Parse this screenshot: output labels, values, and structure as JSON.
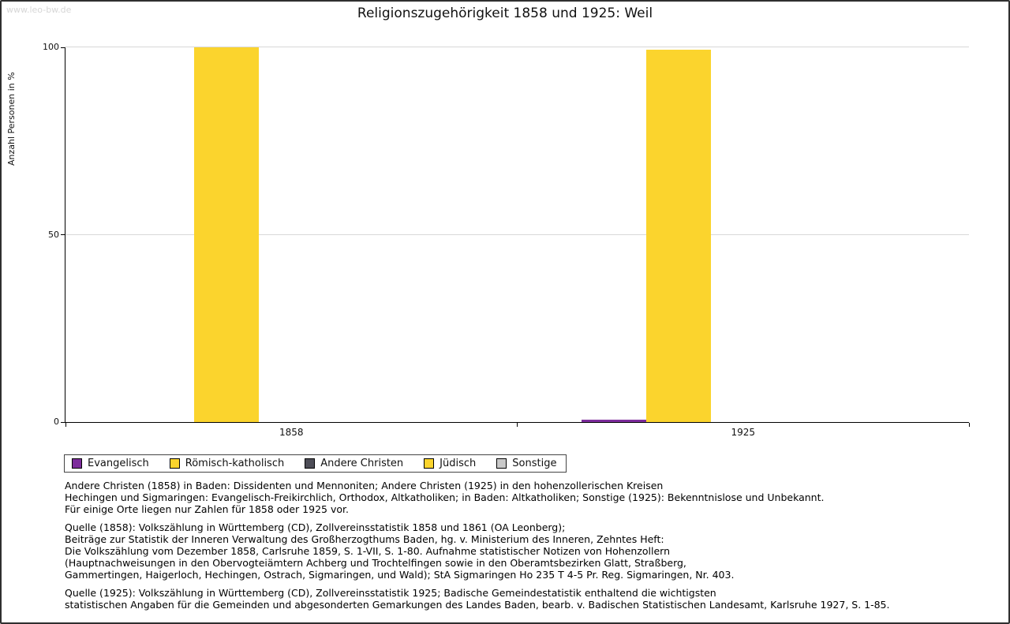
{
  "watermark": "www.leo-bw.de",
  "chart_data": {
    "type": "bar",
    "title": "Religionszugehörigkeit 1858 und 1925: Weil",
    "ylabel": "Anzahl Personen in %",
    "ylim": [
      0,
      100
    ],
    "yticks": [
      0,
      50,
      100
    ],
    "grid": true,
    "legend_position": "bottom-left",
    "categories": [
      "1858",
      "1925"
    ],
    "series": [
      {
        "name": "Evangelisch",
        "color": "#7d2d9c",
        "values": [
          0,
          0.7
        ]
      },
      {
        "name": "Römisch-katholisch",
        "color": "#fbd42d",
        "values": [
          100,
          99.3
        ]
      },
      {
        "name": "Andere Christen",
        "color": "#4d4d57",
        "values": [
          0,
          0
        ]
      },
      {
        "name": "Jüdisch",
        "color": "#fbd42d",
        "values": [
          0,
          0
        ]
      },
      {
        "name": "Sonstige",
        "color": "#c9c9c9",
        "values": [
          0,
          0
        ]
      }
    ]
  },
  "notes": {
    "para1": {
      "lines": [
        "Andere Christen (1858) in Baden: Dissidenten und Mennoniten; Andere Christen (1925) in den hohenzollerischen Kreisen",
        "Hechingen und Sigmaringen: Evangelisch-Freikirchlich, Orthodox, Altkatholiken; in Baden: Altkatholiken; Sonstige (1925): Bekenntnislose und Unbekannt.",
        "Für einige Orte liegen nur Zahlen für 1858 oder 1925 vor."
      ]
    },
    "para2": {
      "lines": [
        "Quelle (1858): Volkszählung in Württemberg (CD), Zollvereinsstatistik 1858 und 1861 (OA Leonberg);",
        "Beiträge zur Statistik der Inneren Verwaltung des Großherzogthums Baden, hg. v. Ministerium des Inneren, Zehntes Heft:",
        "Die Volkszählung vom Dezember 1858, Carlsruhe 1859, S. 1-VII, S. 1-80. Aufnahme statistischer Notizen von Hohenzollern",
        "(Hauptnachweisungen in den Obervogteiämtern Achberg und Trochtelfingen sowie in den Oberamtsbezirken Glatt, Straßberg,",
        "Gammertingen, Haigerloch, Hechingen, Ostrach, Sigmaringen, und Wald); StA Sigmaringen Ho 235 T 4-5 Pr. Reg. Sigmaringen, Nr. 403."
      ]
    },
    "para3": {
      "lines": [
        "Quelle (1925): Volkszählung in Württemberg (CD), Zollvereinsstatistik 1925; Badische Gemeindestatistik enthaltend die wichtigsten",
        "statistischen Angaben für die Gemeinden und abgesonderten Gemarkungen des Landes Baden, bearb. v. Badischen Statistischen Landesamt, Karlsruhe 1927, S. 1-85."
      ]
    }
  }
}
